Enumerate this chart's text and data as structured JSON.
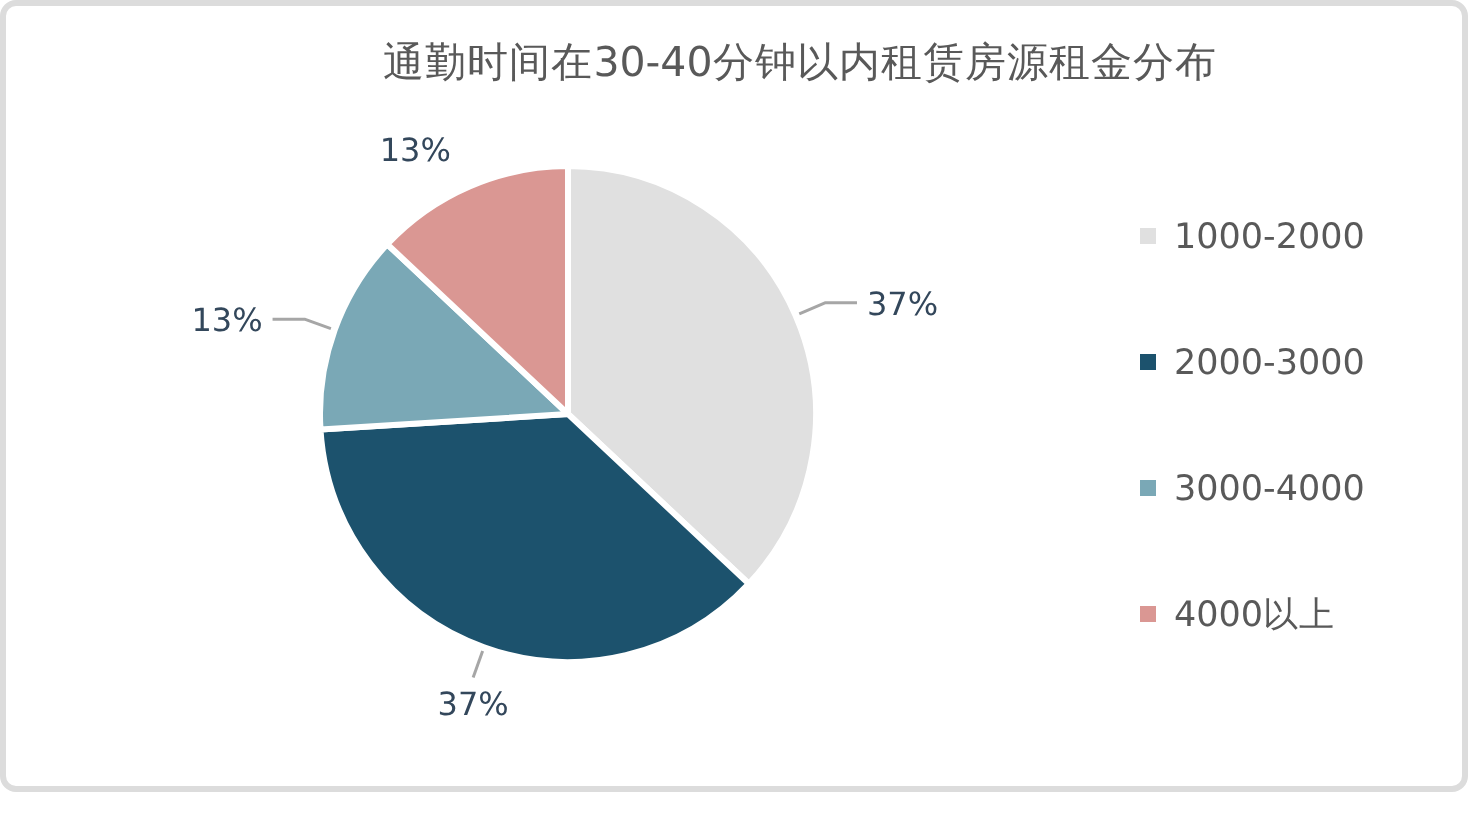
{
  "chart_data": {
    "type": "pie",
    "title": "通勤时间在30-40分钟以内租赁房源租金分布",
    "categories": [
      "1000-2000",
      "2000-3000",
      "3000-4000",
      "4000以上"
    ],
    "values": [
      37,
      37,
      13,
      13
    ],
    "colors": [
      "#e0e0e0",
      "#1c526d",
      "#7aa8b6",
      "#da9793"
    ],
    "value_labels": [
      "37%",
      "37%",
      "13%",
      "13%"
    ],
    "legend": "right"
  }
}
